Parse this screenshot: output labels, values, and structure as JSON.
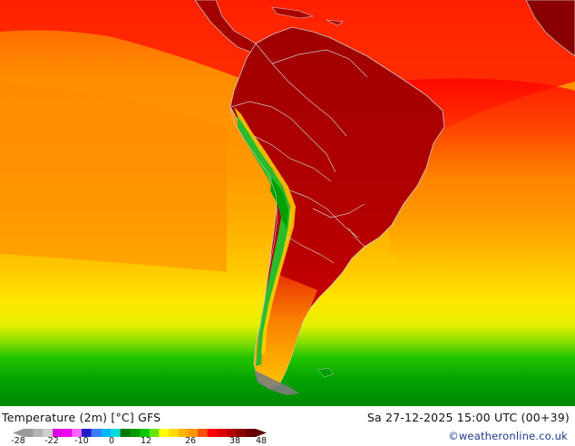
{
  "map": {
    "title": "Temperature (2m) [°C] GFS",
    "timestamp": "Sa 27-12-2025 15:00 UTC (00+39)",
    "credit": "©weatheronline.co.uk",
    "legend": {
      "ticks": [
        "-28",
        "-22",
        "-10",
        "0",
        "12",
        "26",
        "38",
        "48"
      ],
      "colors": [
        "#9a9a9a",
        "#b4b4b4",
        "#cdcdcd",
        "#dc00dc",
        "#f000f0",
        "#ff66ff",
        "#1e1ec8",
        "#3c78ff",
        "#00b4ff",
        "#00dcdc",
        "#007800",
        "#009600",
        "#00c800",
        "#66e600",
        "#ffff00",
        "#ffdc00",
        "#ffb400",
        "#ff9600",
        "#ff5000",
        "#ff0000",
        "#dc0000",
        "#b40000",
        "#8c0000",
        "#640000"
      ]
    },
    "palette": {
      "cool_band": "#00aa00",
      "ocean_warm": "#ff9900",
      "ocean_hot": "#ff3300",
      "land_hot": "#b80000",
      "andes": "#22bb22",
      "border": "#c8c8c8"
    }
  }
}
